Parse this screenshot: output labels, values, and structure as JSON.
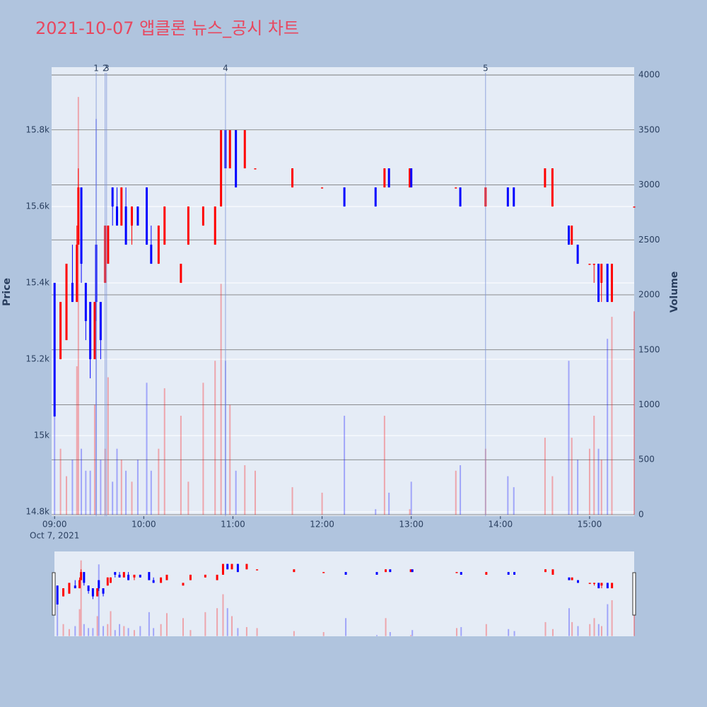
{
  "chart_data": {
    "type": "candlestick",
    "title": "2021-10-07 앱클론 뉴스_공시 차트",
    "ylabel": "Price",
    "y2label": "Volume",
    "increasing_color": "#ff0000",
    "decreasing_color": "#0000ff",
    "x": [
      "2021-10-07 09:00",
      "2021-10-07 09:04",
      "2021-10-07 09:08",
      "2021-10-07 09:12",
      "2021-10-07 09:15",
      "2021-10-07 09:16",
      "2021-10-07 09:18",
      "2021-10-07 09:21",
      "2021-10-07 09:24",
      "2021-10-07 09:27",
      "2021-10-07 09:28",
      "2021-10-07 09:31",
      "2021-10-07 09:34",
      "2021-10-07 09:36",
      "2021-10-07 09:39",
      "2021-10-07 09:42",
      "2021-10-07 09:45",
      "2021-10-07 09:48",
      "2021-10-07 09:52",
      "2021-10-07 09:56",
      "2021-10-07 10:02",
      "2021-10-07 10:05",
      "2021-10-07 10:10",
      "2021-10-07 10:14",
      "2021-10-07 10:25",
      "2021-10-07 10:30",
      "2021-10-07 10:40",
      "2021-10-07 10:48",
      "2021-10-07 10:52",
      "2021-10-07 10:55",
      "2021-10-07 10:58",
      "2021-10-07 11:02",
      "2021-10-07 11:08",
      "2021-10-07 11:15",
      "2021-10-07 11:40",
      "2021-10-07 12:00",
      "2021-10-07 12:15",
      "2021-10-07 12:36",
      "2021-10-07 12:42",
      "2021-10-07 12:45",
      "2021-10-07 12:59",
      "2021-10-07 13:00",
      "2021-10-07 13:30",
      "2021-10-07 13:33",
      "2021-10-07 13:50",
      "2021-10-07 14:05",
      "2021-10-07 14:09",
      "2021-10-07 14:30",
      "2021-10-07 14:35",
      "2021-10-07 14:46",
      "2021-10-07 14:48",
      "2021-10-07 14:52",
      "2021-10-07 15:00",
      "2021-10-07 15:03",
      "2021-10-07 15:06",
      "2021-10-07 15:08",
      "2021-10-07 15:12",
      "2021-10-07 15:15",
      "2021-10-07 15:30"
    ],
    "open": [
      15400,
      15200,
      15250,
      15400,
      15350,
      15500,
      15650,
      15400,
      15350,
      15200,
      15500,
      15350,
      15400,
      15450,
      15650,
      15600,
      15550,
      15600,
      15550,
      15600,
      15650,
      15500,
      15450,
      15500,
      15400,
      15500,
      15550,
      15500,
      15600,
      15800,
      15700,
      15800,
      15700,
      15700,
      15650,
      15650,
      15650,
      15650,
      15650,
      15700,
      15650,
      15700,
      15650,
      15650,
      15600,
      15650,
      15650,
      15650,
      15600,
      15550,
      15500,
      15500,
      15450,
      15450,
      15450,
      15400,
      15450,
      15350,
      15600
    ],
    "high": [
      15400,
      15350,
      15450,
      15500,
      15550,
      15700,
      15650,
      15400,
      15350,
      15350,
      15500,
      15350,
      15550,
      15550,
      15650,
      15650,
      15650,
      15650,
      15600,
      15600,
      15650,
      15550,
      15550,
      15600,
      15450,
      15600,
      15600,
      15600,
      15800,
      15800,
      15800,
      15800,
      15800,
      15700,
      15700,
      15650,
      15650,
      15650,
      15700,
      15700,
      15700,
      15700,
      15650,
      15650,
      15650,
      15650,
      15650,
      15700,
      15700,
      15550,
      15550,
      15500,
      15450,
      15450,
      15450,
      15450,
      15450,
      15450,
      15600
    ],
    "low": [
      15050,
      15200,
      15250,
      15350,
      15350,
      15500,
      15400,
      15250,
      15150,
      15200,
      15300,
      15200,
      15400,
      15450,
      15550,
      15550,
      15550,
      15500,
      15500,
      15550,
      15500,
      15450,
      15450,
      15500,
      15400,
      15500,
      15550,
      15500,
      15600,
      15700,
      15700,
      15650,
      15700,
      15700,
      15650,
      15650,
      15600,
      15600,
      15650,
      15650,
      15650,
      15650,
      15650,
      15600,
      15600,
      15600,
      15600,
      15650,
      15600,
      15500,
      15500,
      15450,
      15450,
      15400,
      15350,
      15350,
      15350,
      15350,
      15600
    ],
    "close": [
      15050,
      15350,
      15450,
      15350,
      15500,
      15650,
      15450,
      15300,
      15200,
      15350,
      15350,
      15250,
      15550,
      15550,
      15600,
      15550,
      15650,
      15500,
      15600,
      15550,
      15500,
      15450,
      15550,
      15600,
      15450,
      15600,
      15600,
      15600,
      15800,
      15700,
      15800,
      15650,
      15800,
      15700,
      15700,
      15650,
      15600,
      15600,
      15700,
      15650,
      15700,
      15650,
      15650,
      15600,
      15650,
      15600,
      15600,
      15700,
      15700,
      15500,
      15550,
      15450,
      15450,
      15450,
      15350,
      15450,
      15350,
      15450,
      15600
    ],
    "volume": [
      1700,
      600,
      350,
      500,
      1350,
      3800,
      600,
      400,
      400,
      1000,
      3600,
      500,
      600,
      1250,
      300,
      600,
      500,
      400,
      300,
      500,
      1200,
      400,
      600,
      1150,
      900,
      300,
      1200,
      1400,
      2100,
      1400,
      1000,
      400,
      450,
      400,
      250,
      200,
      900,
      50,
      900,
      200,
      50,
      300,
      400,
      450,
      600,
      350,
      250,
      700,
      350,
      1400,
      700,
      500,
      600,
      900,
      600,
      500,
      1600,
      1800,
      1850
    ],
    "xlim": [
      "2021-10-07 08:58",
      "2021-10-07 15:30"
    ],
    "xticks": [
      {
        "value": "2021-10-07 09:00",
        "label": "09:00"
      },
      {
        "value": "2021-10-07 10:00",
        "label": "10:00"
      },
      {
        "value": "2021-10-07 11:00",
        "label": "11:00"
      },
      {
        "value": "2021-10-07 12:00",
        "label": "12:00"
      },
      {
        "value": "2021-10-07 13:00",
        "label": "13:00"
      },
      {
        "value": "2021-10-07 14:00",
        "label": "14:00"
      },
      {
        "value": "2021-10-07 15:00",
        "label": "15:00"
      }
    ],
    "x_date_label": "Oct 7, 2021",
    "ylim": [
      14789,
      15965
    ],
    "yticks": [
      {
        "value": 14800,
        "label": "14.8k"
      },
      {
        "value": 15000,
        "label": "15k"
      },
      {
        "value": 15200,
        "label": "15.2k"
      },
      {
        "value": 15400,
        "label": "15.4k"
      },
      {
        "value": 15600,
        "label": "15.6k"
      },
      {
        "value": 15800,
        "label": "15.8k"
      }
    ],
    "y2lim": [
      -13,
      4071
    ],
    "y2ticks": [
      0,
      500,
      1000,
      1500,
      2000,
      2500,
      3000,
      3500,
      4000
    ],
    "annotations": [
      {
        "x": "2021-10-07 09:28",
        "label": "1"
      },
      {
        "x": "2021-10-07 09:34",
        "label": "2"
      },
      {
        "x": "2021-10-07 09:35",
        "label": "3"
      },
      {
        "x": "2021-10-07 10:55",
        "label": "4"
      },
      {
        "x": "2021-10-07 13:50",
        "label": "5"
      }
    ]
  }
}
